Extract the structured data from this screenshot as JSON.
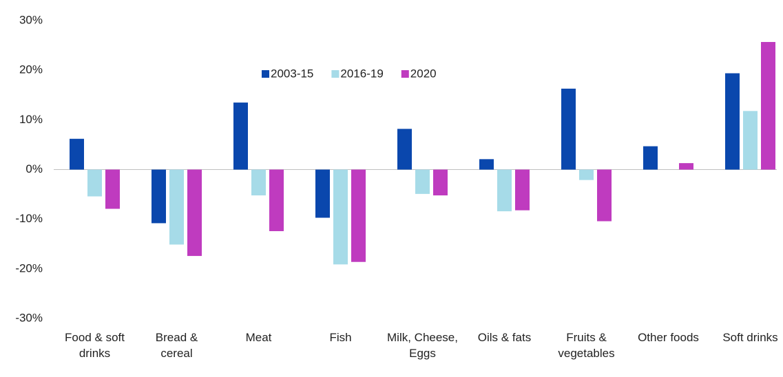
{
  "chart_data": {
    "type": "bar",
    "categories": [
      "Food & soft drinks",
      "Bread & cereal",
      "Meat",
      "Fish",
      "Milk, Cheese, Eggs",
      "Oils & fats",
      "Fruits & vegetables",
      "Other foods",
      "Soft drinks"
    ],
    "series": [
      {
        "name": "2003-15",
        "color": "#0a47ad",
        "values": [
          6.2,
          -10.8,
          13.5,
          -9.7,
          8.2,
          2.1,
          16.3,
          4.7,
          19.4
        ]
      },
      {
        "name": "2016-19",
        "color": "#a6dbe8",
        "values": [
          -5.4,
          -15.1,
          -5.2,
          -19.1,
          -4.9,
          -8.4,
          -2.1,
          null,
          11.8
        ]
      },
      {
        "name": "2020",
        "color": "#bf3bbf",
        "values": [
          -7.9,
          -17.4,
          -12.4,
          -18.6,
          -5.2,
          -8.2,
          -10.4,
          1.3,
          25.7
        ]
      }
    ],
    "ylim": [
      -30,
      30
    ],
    "yticks": [
      {
        "value": -30,
        "label": "-30%"
      },
      {
        "value": -20,
        "label": "-20%"
      },
      {
        "value": -10,
        "label": "-10%"
      },
      {
        "value": 0,
        "label": "0%"
      },
      {
        "value": 10,
        "label": "10%"
      },
      {
        "value": 20,
        "label": "20%"
      },
      {
        "value": 30,
        "label": "30%"
      }
    ],
    "legend": "top"
  }
}
